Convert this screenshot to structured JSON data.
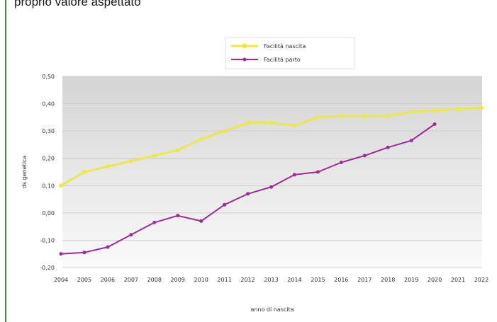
{
  "page": {
    "top_text": "proprio valore aspettato"
  },
  "chart_data": {
    "type": "line",
    "title": "",
    "xlabel": "anno di nascita",
    "ylabel": "ds genetica",
    "x": [
      2004,
      2005,
      2006,
      2007,
      2008,
      2009,
      2010,
      2011,
      2012,
      2013,
      2014,
      2015,
      2016,
      2017,
      2018,
      2019,
      2020,
      2021,
      2022
    ],
    "ylim": [
      -0.2,
      0.5
    ],
    "y_ticks": [
      -0.2,
      -0.1,
      0.0,
      0.1,
      0.2,
      0.3,
      0.4,
      0.5
    ],
    "y_tick_labels": [
      "-0,20",
      "-0,10",
      "0,00",
      "0,10",
      "0,20",
      "0,30",
      "0,40",
      "0,50"
    ],
    "grid": true,
    "legend_position": "top-center",
    "series": [
      {
        "name": "Facilità nascita",
        "color": "#ece84a",
        "values": [
          0.1,
          0.15,
          0.17,
          0.19,
          0.21,
          0.23,
          0.27,
          0.3,
          0.33,
          0.33,
          0.32,
          0.35,
          0.355,
          0.355,
          0.355,
          0.37,
          0.375,
          0.38,
          0.385
        ]
      },
      {
        "name": "Facilità parto",
        "color": "#9b2d92",
        "values": [
          -0.15,
          -0.145,
          -0.125,
          -0.08,
          -0.035,
          -0.01,
          -0.03,
          0.03,
          0.07,
          0.095,
          0.14,
          0.15,
          0.185,
          0.21,
          0.24,
          0.265,
          0.325,
          null,
          null
        ]
      }
    ]
  }
}
